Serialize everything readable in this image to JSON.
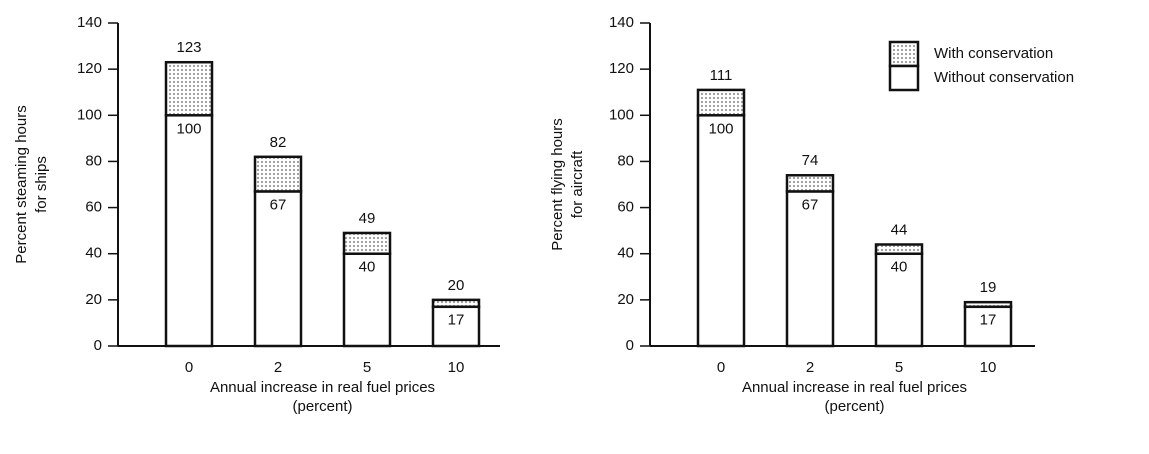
{
  "chart_data": [
    {
      "type": "stacked_bar",
      "y_label": [
        "Percent steaming hours",
        "for ships"
      ],
      "x_label": [
        "Annual increase in real fuel prices",
        "(percent)"
      ],
      "categories": [
        "0",
        "2",
        "5",
        "10"
      ],
      "series": [
        {
          "name": "Without conservation",
          "color": "#ffffff",
          "values": [
            100,
            67,
            40,
            17
          ]
        },
        {
          "name": "With conservation",
          "color": "#999999",
          "values": [
            23,
            15,
            9,
            3
          ]
        }
      ],
      "totals": [
        123,
        82,
        49,
        20
      ],
      "ylim": [
        0,
        140
      ],
      "yticks": [
        0,
        20,
        40,
        60,
        80,
        100,
        120,
        140
      ]
    },
    {
      "type": "stacked_bar",
      "y_label": [
        "Percent flying hours",
        "for aircraft"
      ],
      "x_label": [
        "Annual increase in real fuel prices",
        "(percent)"
      ],
      "categories": [
        "0",
        "2",
        "5",
        "10"
      ],
      "series": [
        {
          "name": "Without conservation",
          "color": "#ffffff",
          "values": [
            100,
            67,
            40,
            17
          ]
        },
        {
          "name": "With conservation",
          "color": "#999999",
          "values": [
            11,
            7,
            4,
            2
          ]
        }
      ],
      "totals": [
        111,
        74,
        44,
        19
      ],
      "ylim": [
        0,
        140
      ],
      "yticks": [
        0,
        20,
        40,
        60,
        80,
        100,
        120,
        140
      ],
      "legend": "upper right"
    }
  ]
}
